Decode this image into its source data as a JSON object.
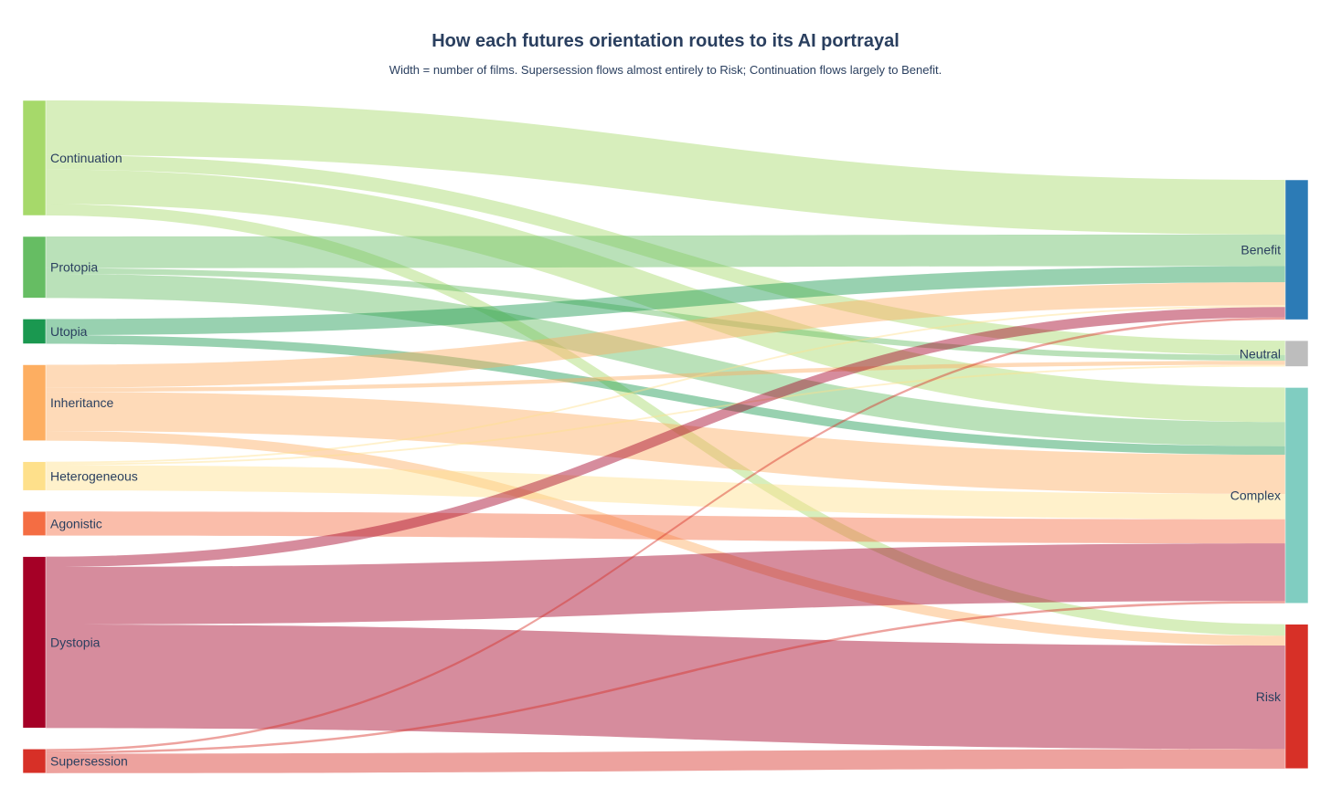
{
  "title": "How each futures orientation routes to its AI portrayal",
  "subtitle": "Width = number of films. Supersession flows almost entirely to Risk; Continuation flows largely to Benefit.",
  "chart_data": {
    "type": "sankey",
    "source_nodes": [
      {
        "name": "Continuation",
        "color": "#a6d96a"
      },
      {
        "name": "Protopia",
        "color": "#66bd63"
      },
      {
        "name": "Utopia",
        "color": "#1a9850"
      },
      {
        "name": "Inheritance",
        "color": "#fdae61"
      },
      {
        "name": "Heterogeneous",
        "color": "#fee08b"
      },
      {
        "name": "Agonistic",
        "color": "#f46d43"
      },
      {
        "name": "Dystopia",
        "color": "#a50026"
      },
      {
        "name": "Supersession",
        "color": "#d73027"
      }
    ],
    "target_nodes": [
      {
        "name": "Benefit",
        "color": "#2c7bb6"
      },
      {
        "name": "Neutral",
        "color": "#bdbdbd"
      },
      {
        "name": "Complex",
        "color": "#80cdc1"
      },
      {
        "name": "Risk",
        "color": "#d73027"
      }
    ],
    "links": [
      {
        "source": "Continuation",
        "target": "Benefit",
        "value": 9.5
      },
      {
        "source": "Continuation",
        "target": "Neutral",
        "value": 2.5
      },
      {
        "source": "Continuation",
        "target": "Complex",
        "value": 6
      },
      {
        "source": "Continuation",
        "target": "Risk",
        "value": 2
      },
      {
        "source": "Protopia",
        "target": "Benefit",
        "value": 5.5
      },
      {
        "source": "Protopia",
        "target": "Neutral",
        "value": 1
      },
      {
        "source": "Protopia",
        "target": "Complex",
        "value": 4.2
      },
      {
        "source": "Utopia",
        "target": "Benefit",
        "value": 2.8
      },
      {
        "source": "Utopia",
        "target": "Complex",
        "value": 1.5
      },
      {
        "source": "Inheritance",
        "target": "Benefit",
        "value": 4
      },
      {
        "source": "Inheritance",
        "target": "Neutral",
        "value": 0.7
      },
      {
        "source": "Inheritance",
        "target": "Complex",
        "value": 6.8
      },
      {
        "source": "Inheritance",
        "target": "Risk",
        "value": 1.7
      },
      {
        "source": "Heterogeneous",
        "target": "Benefit",
        "value": 0.3
      },
      {
        "source": "Heterogeneous",
        "target": "Neutral",
        "value": 0.3
      },
      {
        "source": "Heterogeneous",
        "target": "Complex",
        "value": 4.4
      },
      {
        "source": "Agonistic",
        "target": "Complex",
        "value": 4.2
      },
      {
        "source": "Dystopia",
        "target": "Benefit",
        "value": 1.8
      },
      {
        "source": "Dystopia",
        "target": "Complex",
        "value": 10
      },
      {
        "source": "Dystopia",
        "target": "Risk",
        "value": 18
      },
      {
        "source": "Supersession",
        "target": "Benefit",
        "value": 0.4
      },
      {
        "source": "Supersession",
        "target": "Complex",
        "value": 0.4
      },
      {
        "source": "Supersession",
        "target": "Risk",
        "value": 3.4
      }
    ]
  }
}
